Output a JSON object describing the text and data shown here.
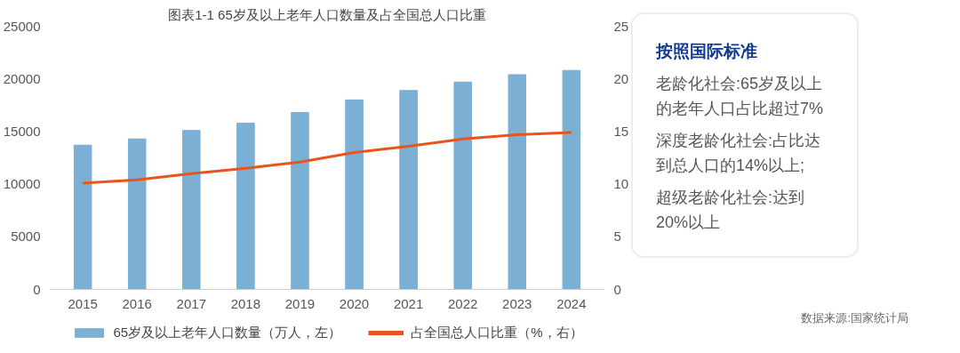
{
  "chart_data": {
    "type": "bar",
    "title": "图表1-1 65岁及以上老年人口数量及占全国总人口比重",
    "categories": [
      "2015",
      "2016",
      "2017",
      "2018",
      "2019",
      "2020",
      "2021",
      "2022",
      "2023",
      "2024"
    ],
    "series": [
      {
        "name": "65岁及以上老年人口数量（万人，左）",
        "color": "#7bafd4",
        "values": [
          13700,
          14300,
          15100,
          15800,
          16800,
          18000,
          18900,
          19700,
          20400,
          20800
        ]
      },
      {
        "name": "占全国总人口比重（%，右）",
        "type": "line",
        "axis": "y2",
        "color": "#e8541e",
        "values": [
          10.1,
          10.4,
          11.0,
          11.5,
          12.1,
          13.0,
          13.6,
          14.3,
          14.7,
          14.9
        ]
      }
    ],
    "ylim": [
      0,
      25000
    ],
    "yticks": [
      0,
      5000,
      10000,
      15000,
      20000,
      25000
    ],
    "y2lim": [
      0,
      25
    ],
    "y2ticks": [
      0,
      5,
      10,
      15,
      20,
      25
    ],
    "legend": "bottom",
    "annotations": [
      "按照国际标准",
      "老龄化社会:65岁及以上的老年人口占比超过7%",
      "深度老龄化社会:占比达到总人口的14%以上;",
      "超级老龄化社会:达到20%以上",
      "数据来源:国家统计局"
    ]
  }
}
